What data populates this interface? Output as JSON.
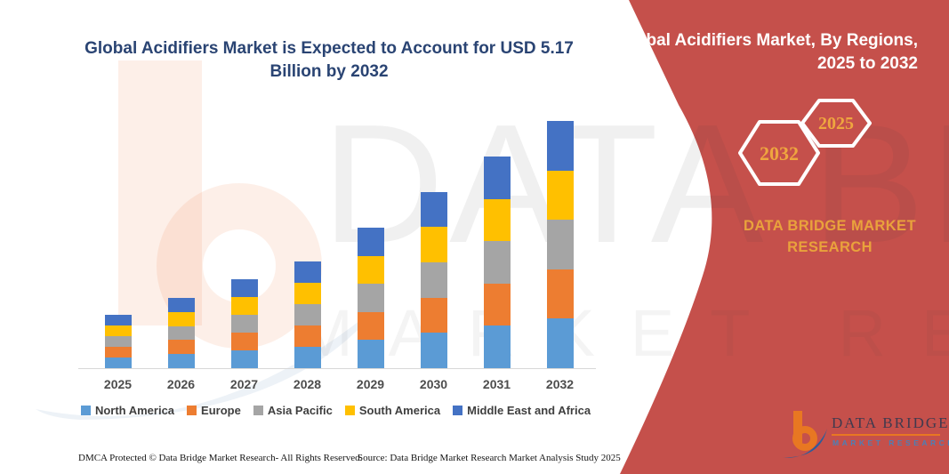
{
  "title": {
    "line1": "Global Acidifiers Market is Expected to Account for USD 5.17",
    "line2": "Billion by 2032"
  },
  "banner": {
    "color": "#C5504B",
    "title_line1": "Global Acidifiers Market, By Regions,",
    "title_line2": "2025 to 2032",
    "hexagon_left": "2032",
    "hexagon_right": "2025",
    "brand_line1": "DATA BRIDGE MARKET",
    "brand_line2": "RESEARCH",
    "accent_gold": "#E9A23C"
  },
  "watermark": {
    "line1": "DATA BRIDGE",
    "line2": "MARKET RESEARCH"
  },
  "chart_data": {
    "type": "bar",
    "stacked": true,
    "title": "Global Acidifiers Market is Expected to Account for USD 5.17 Billion by 2032",
    "unit": "USD Billion",
    "categories": [
      "2025",
      "2026",
      "2027",
      "2028",
      "2029",
      "2030",
      "2031",
      "2032"
    ],
    "series": [
      {
        "name": "North America",
        "color": "#5B9BD5",
        "values": [
          0.222,
          0.294,
          0.372,
          0.447,
          0.587,
          0.738,
          0.886,
          1.034
        ]
      },
      {
        "name": "Europe",
        "color": "#ED7D31",
        "values": [
          0.222,
          0.294,
          0.372,
          0.447,
          0.587,
          0.738,
          0.886,
          1.034
        ]
      },
      {
        "name": "Asia Pacific",
        "color": "#A5A5A5",
        "values": [
          0.222,
          0.294,
          0.372,
          0.447,
          0.587,
          0.738,
          0.886,
          1.034
        ]
      },
      {
        "name": "South America",
        "color": "#FFC000",
        "values": [
          0.222,
          0.294,
          0.372,
          0.447,
          0.587,
          0.738,
          0.886,
          1.034
        ]
      },
      {
        "name": "Middle East and Africa",
        "color": "#4472C4",
        "values": [
          0.222,
          0.294,
          0.372,
          0.447,
          0.587,
          0.738,
          0.886,
          1.034
        ]
      }
    ],
    "totals": [
      1.11,
      1.47,
      1.86,
      2.24,
      2.94,
      3.69,
      4.43,
      5.17
    ],
    "ylim": [
      0,
      5.5
    ],
    "gridlines": false,
    "legend_position": "bottom",
    "annotation": "USD 5.17 Billion by 2032"
  },
  "footer": {
    "left": "DMCA Protected © Data Bridge Market Research-  All Rights Reserved.",
    "source": "Source: Data Bridge Market Research  Market Analysis Study 2025"
  },
  "logo": {
    "name": "DATA BRIDGE",
    "sub": "MARKET RESEARCH"
  }
}
